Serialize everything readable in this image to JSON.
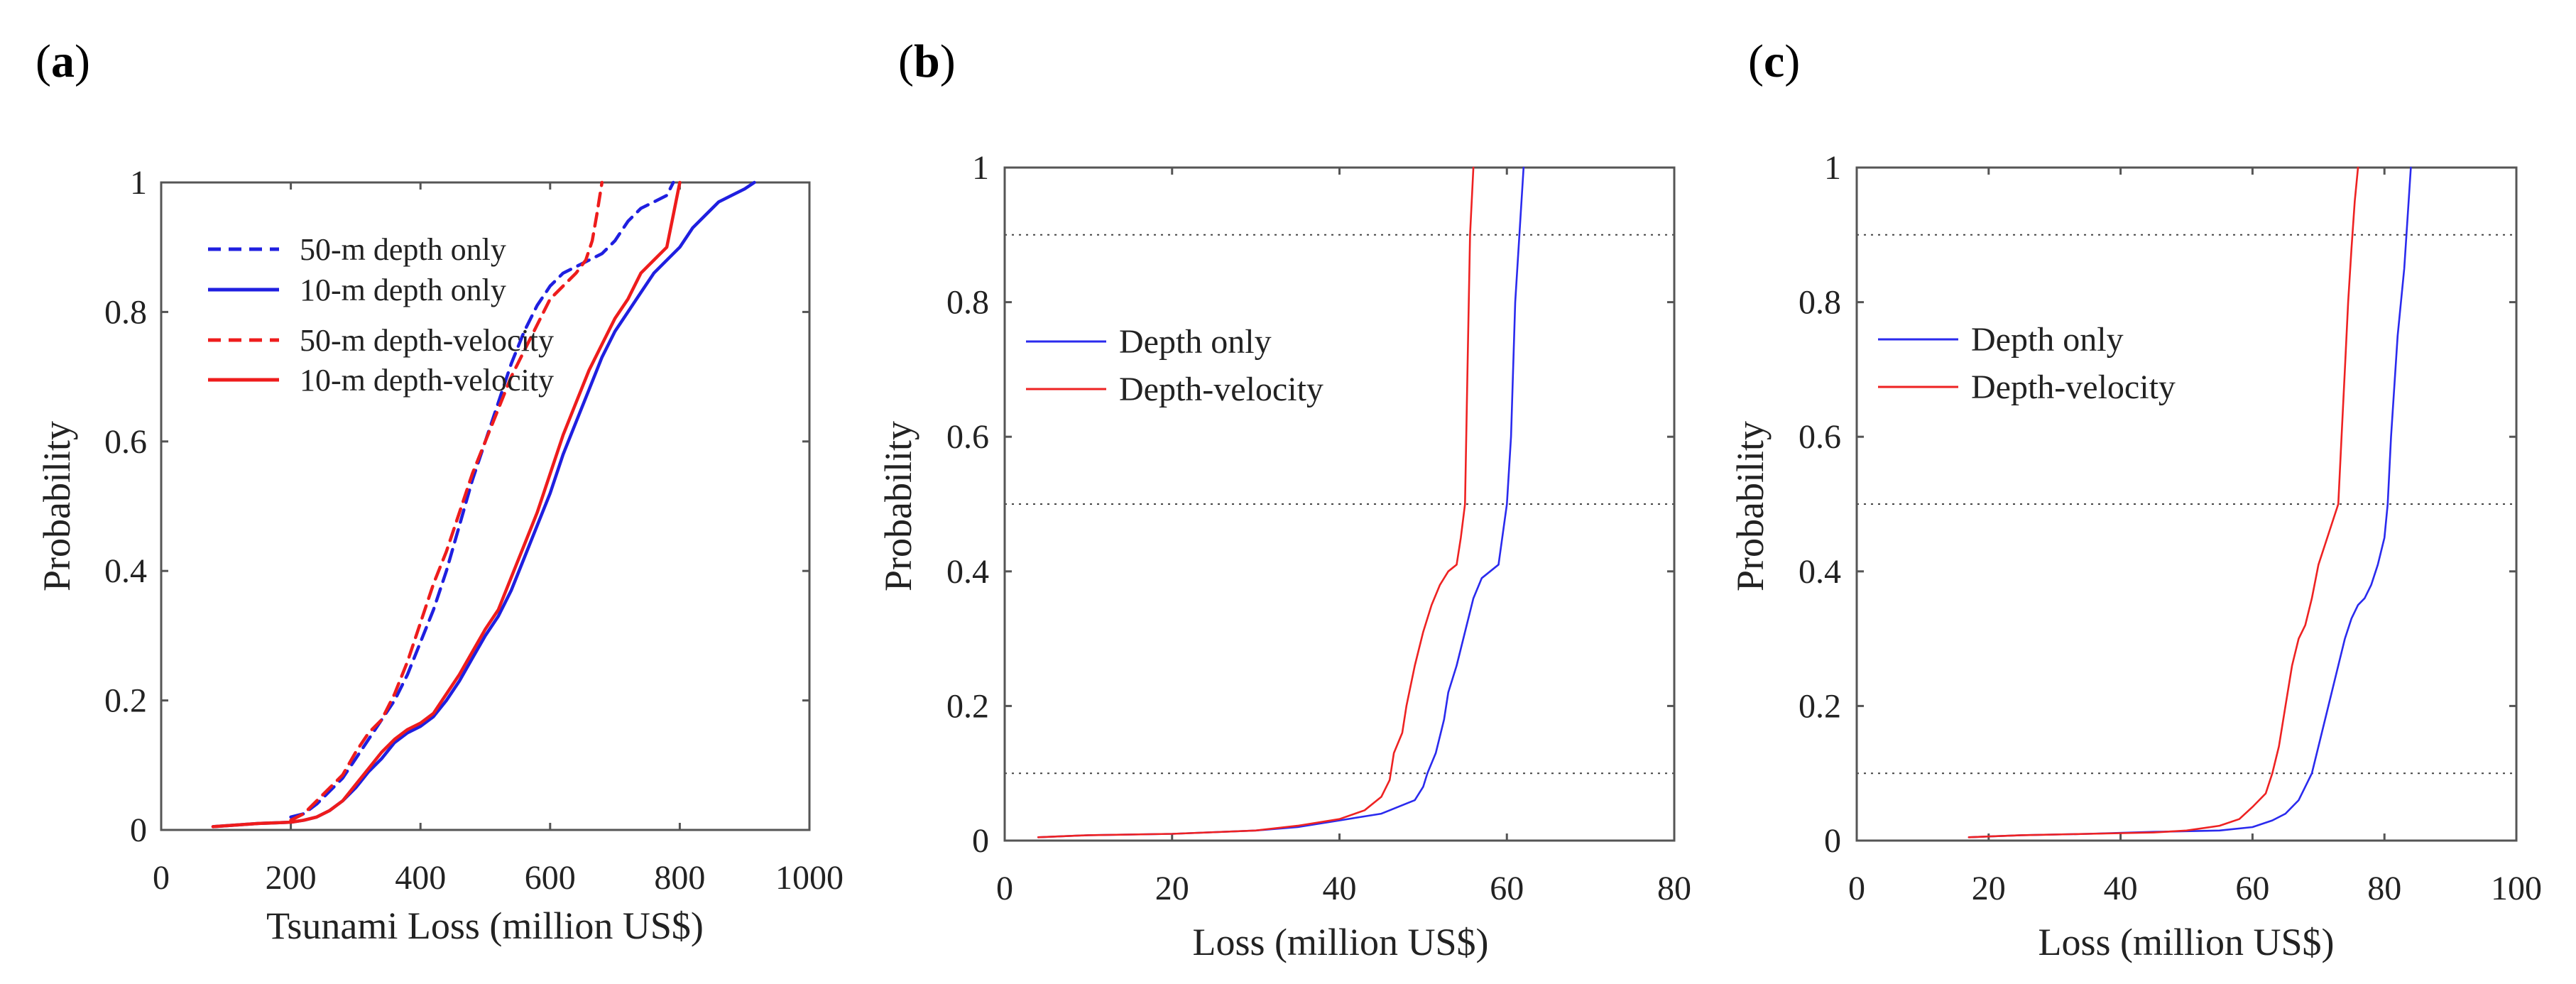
{
  "figure": {
    "panels": [
      "a",
      "b",
      "c"
    ]
  },
  "chart_data": [
    {
      "id": "a",
      "panel_label": "a",
      "type": "line",
      "xlabel": "Tsunami Loss (million US$)",
      "ylabel": "Probability",
      "xlim": [
        0,
        1000
      ],
      "ylim": [
        0,
        1
      ],
      "xticks": [
        0,
        200,
        400,
        600,
        800,
        1000
      ],
      "yticks": [
        0,
        0.2,
        0.4,
        0.6,
        0.8,
        1
      ],
      "ytick_labels": [
        "0",
        "0.2",
        "0.4",
        "0.6",
        "0.8",
        "1"
      ],
      "grid": false,
      "legend_position": "top-left",
      "series": [
        {
          "name": "50-m depth only",
          "color": "#1f1fe0",
          "dash": true,
          "x": [
            200,
            220,
            240,
            260,
            280,
            300,
            320,
            340,
            360,
            380,
            400,
            420,
            440,
            460,
            480,
            500,
            520,
            540,
            560,
            580,
            600,
            620,
            640,
            660,
            680,
            700,
            720,
            740,
            760,
            780,
            790
          ],
          "y": [
            0.02,
            0.025,
            0.04,
            0.06,
            0.08,
            0.11,
            0.14,
            0.17,
            0.2,
            0.24,
            0.29,
            0.34,
            0.4,
            0.47,
            0.54,
            0.6,
            0.66,
            0.72,
            0.77,
            0.81,
            0.84,
            0.86,
            0.87,
            0.88,
            0.89,
            0.91,
            0.94,
            0.96,
            0.97,
            0.98,
            1.0
          ]
        },
        {
          "name": "10-m depth only",
          "color": "#1f1fe0",
          "dash": false,
          "x": [
            80,
            150,
            200,
            220,
            240,
            260,
            280,
            300,
            320,
            340,
            360,
            380,
            400,
            420,
            440,
            460,
            480,
            500,
            520,
            540,
            560,
            580,
            600,
            620,
            640,
            660,
            680,
            700,
            720,
            740,
            760,
            780,
            800,
            820,
            840,
            860,
            880,
            900,
            915
          ],
          "y": [
            0.005,
            0.01,
            0.012,
            0.015,
            0.02,
            0.03,
            0.045,
            0.065,
            0.09,
            0.11,
            0.135,
            0.15,
            0.16,
            0.175,
            0.2,
            0.23,
            0.265,
            0.3,
            0.33,
            0.37,
            0.42,
            0.47,
            0.52,
            0.58,
            0.63,
            0.68,
            0.73,
            0.77,
            0.8,
            0.83,
            0.86,
            0.88,
            0.9,
            0.93,
            0.95,
            0.97,
            0.98,
            0.99,
            1.0
          ]
        },
        {
          "name": "50-m depth-velocity",
          "color": "#ee1c1c",
          "dash": true,
          "x": [
            200,
            220,
            240,
            260,
            280,
            300,
            320,
            340,
            360,
            380,
            400,
            420,
            440,
            460,
            480,
            500,
            520,
            540,
            560,
            580,
            600,
            620,
            640,
            655,
            665,
            672,
            680
          ],
          "y": [
            0.015,
            0.025,
            0.045,
            0.065,
            0.085,
            0.12,
            0.15,
            0.17,
            0.21,
            0.26,
            0.32,
            0.38,
            0.43,
            0.49,
            0.55,
            0.6,
            0.65,
            0.7,
            0.74,
            0.78,
            0.82,
            0.84,
            0.86,
            0.88,
            0.91,
            0.95,
            1.0
          ]
        },
        {
          "name": "10-m depth-velocity",
          "color": "#ee1c1c",
          "dash": false,
          "x": [
            80,
            150,
            200,
            220,
            240,
            260,
            280,
            300,
            320,
            340,
            360,
            380,
            400,
            420,
            440,
            460,
            480,
            500,
            520,
            540,
            560,
            580,
            600,
            620,
            640,
            660,
            680,
            700,
            720,
            740,
            760,
            780,
            790,
            800
          ],
          "y": [
            0.005,
            0.01,
            0.012,
            0.015,
            0.02,
            0.03,
            0.045,
            0.07,
            0.095,
            0.12,
            0.14,
            0.155,
            0.165,
            0.18,
            0.21,
            0.24,
            0.275,
            0.31,
            0.34,
            0.39,
            0.44,
            0.49,
            0.55,
            0.61,
            0.66,
            0.71,
            0.75,
            0.79,
            0.82,
            0.86,
            0.88,
            0.9,
            0.95,
            1.0
          ]
        }
      ]
    },
    {
      "id": "b",
      "panel_label": "b",
      "type": "line",
      "xlabel": "Loss (million US$)",
      "ylabel": "Probability",
      "xlim": [
        0,
        80
      ],
      "ylim": [
        0,
        1
      ],
      "xticks": [
        0,
        20,
        40,
        60,
        80
      ],
      "yticks": [
        0,
        0.2,
        0.4,
        0.6,
        0.8,
        1
      ],
      "ytick_labels": [
        "0",
        "0.2",
        "0.4",
        "0.6",
        "0.8",
        "1"
      ],
      "grid": false,
      "reference_lines": [
        0.1,
        0.5,
        0.9
      ],
      "legend_position": "left",
      "series": [
        {
          "name": "Depth only",
          "color": "#2a2aee",
          "dash": false,
          "x": [
            4,
            10,
            20,
            30,
            35,
            40,
            45,
            47,
            49,
            50,
            50.5,
            51.5,
            52.5,
            53,
            54,
            55,
            56,
            57,
            58,
            59,
            60,
            60.5,
            61,
            61.5,
            62
          ],
          "y": [
            0.005,
            0.008,
            0.01,
            0.015,
            0.02,
            0.03,
            0.04,
            0.05,
            0.06,
            0.08,
            0.1,
            0.13,
            0.18,
            0.22,
            0.26,
            0.31,
            0.36,
            0.39,
            0.4,
            0.41,
            0.5,
            0.6,
            0.8,
            0.9,
            1.0
          ]
        },
        {
          "name": "Depth-velocity",
          "color": "#ee2222",
          "dash": false,
          "x": [
            4,
            10,
            20,
            30,
            35,
            40,
            43,
            45,
            46,
            46.5,
            47.5,
            48,
            49,
            50,
            51,
            52,
            53,
            54,
            54.5,
            55,
            55.3,
            55.6,
            56
          ],
          "y": [
            0.005,
            0.008,
            0.01,
            0.015,
            0.022,
            0.032,
            0.045,
            0.065,
            0.09,
            0.13,
            0.16,
            0.2,
            0.26,
            0.31,
            0.35,
            0.38,
            0.4,
            0.41,
            0.45,
            0.5,
            0.7,
            0.9,
            1.0
          ]
        }
      ]
    },
    {
      "id": "c",
      "panel_label": "c",
      "type": "line",
      "xlabel": "Loss (million US$)",
      "ylabel": "Probability",
      "xlim": [
        0,
        100
      ],
      "ylim": [
        0,
        1
      ],
      "xticks": [
        0,
        20,
        40,
        60,
        80,
        100
      ],
      "yticks": [
        0,
        0.2,
        0.4,
        0.6,
        0.8,
        1
      ],
      "ytick_labels": [
        "0",
        "0.2",
        "0.4",
        "0.6",
        "0.8",
        "1"
      ],
      "grid": false,
      "reference_lines": [
        0.1,
        0.5,
        0.9
      ],
      "legend_position": "left",
      "series": [
        {
          "name": "Depth only",
          "color": "#2a2aee",
          "dash": false,
          "x": [
            17,
            25,
            35,
            45,
            55,
            60,
            63,
            65,
            67,
            68,
            69,
            70,
            71,
            72,
            73,
            74,
            75,
            76,
            77,
            78,
            79,
            80,
            80.5,
            81,
            82,
            83,
            84
          ],
          "y": [
            0.005,
            0.008,
            0.01,
            0.013,
            0.015,
            0.02,
            0.03,
            0.04,
            0.06,
            0.08,
            0.1,
            0.14,
            0.18,
            0.22,
            0.26,
            0.3,
            0.33,
            0.35,
            0.36,
            0.38,
            0.41,
            0.45,
            0.5,
            0.6,
            0.75,
            0.85,
            1.0
          ]
        },
        {
          "name": "Depth-velocity",
          "color": "#ee2222",
          "dash": false,
          "x": [
            17,
            25,
            35,
            45,
            50,
            55,
            58,
            60,
            62,
            63,
            64,
            65,
            66,
            67,
            68,
            69,
            70,
            71,
            72,
            73,
            73.5,
            74,
            74.5,
            75,
            75.5,
            76
          ],
          "y": [
            0.005,
            0.008,
            0.01,
            0.012,
            0.015,
            0.022,
            0.032,
            0.05,
            0.07,
            0.1,
            0.14,
            0.2,
            0.26,
            0.3,
            0.32,
            0.36,
            0.41,
            0.44,
            0.47,
            0.5,
            0.6,
            0.7,
            0.8,
            0.88,
            0.95,
            1.0
          ]
        }
      ]
    }
  ]
}
